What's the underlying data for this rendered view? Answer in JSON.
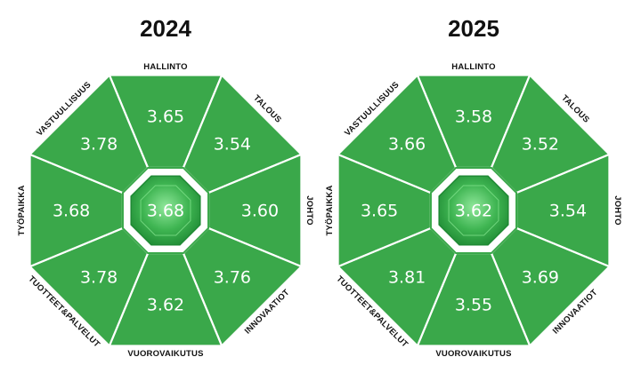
{
  "colors": {
    "segment": "#3aa84a",
    "segment_border": "#ffffff",
    "center_light": "#7ee08a",
    "center_dark": "#1f8a34",
    "label": "#111111"
  },
  "charts": [
    {
      "year": "2024",
      "center": "3.68",
      "segments": [
        {
          "label": "HALLINTO",
          "value": "3.65"
        },
        {
          "label": "TALOUS",
          "value": "3.54"
        },
        {
          "label": "JOHTO",
          "value": "3.60"
        },
        {
          "label": "INNOVAATIOT",
          "value": "3.76"
        },
        {
          "label": "VUOROVAIKUTUS",
          "value": "3.62"
        },
        {
          "label": "TUOTTEET&PALVELUT",
          "value": "3.78"
        },
        {
          "label": "TYÖPAIKKA",
          "value": "3.68"
        },
        {
          "label": "VASTUULLISUUS",
          "value": "3.78"
        }
      ]
    },
    {
      "year": "2025",
      "center": "3.62",
      "segments": [
        {
          "label": "HALLINTO",
          "value": "3.58"
        },
        {
          "label": "TALOUS",
          "value": "3.52"
        },
        {
          "label": "JOHTO",
          "value": "3.54"
        },
        {
          "label": "INNOVAATIOT",
          "value": "3.69"
        },
        {
          "label": "VUOROVAIKUTUS",
          "value": "3.55"
        },
        {
          "label": "TUOTTEET&PALVELUT",
          "value": "3.81"
        },
        {
          "label": "TYÖPAIKKA",
          "value": "3.65"
        },
        {
          "label": "VASTUULLISUUS",
          "value": "3.66"
        }
      ]
    }
  ]
}
